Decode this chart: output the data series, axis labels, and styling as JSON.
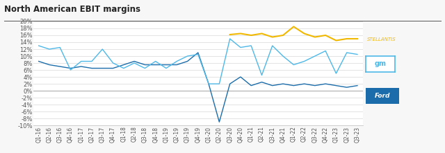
{
  "title": "North American EBIT margins",
  "x_labels": [
    "Q1-16",
    "Q2-16",
    "Q3-16",
    "Q4-16",
    "Q1-17",
    "Q2-17",
    "Q3-17",
    "Q4-17",
    "Q1-18",
    "Q2-18",
    "Q3-18",
    "Q4-18",
    "Q1-19",
    "Q2-19",
    "Q3-19",
    "Q4-19",
    "Q1-20",
    "Q2-20",
    "Q3-20",
    "Q4-20",
    "Q1-21",
    "Q2-21",
    "Q3-21",
    "Q4-21",
    "Q1-22",
    "Q2-22",
    "Q3-22",
    "Q4-22",
    "Q1-23",
    "Q2-23",
    "Q3-23"
  ],
  "stellantis": [
    null,
    null,
    null,
    null,
    null,
    null,
    null,
    null,
    null,
    null,
    null,
    null,
    null,
    null,
    null,
    null,
    null,
    null,
    16.2,
    16.5,
    16.0,
    16.5,
    15.5,
    16.0,
    18.5,
    16.5,
    15.5,
    16.0,
    14.5,
    15.0,
    15.0
  ],
  "gm": [
    13.0,
    12.0,
    12.5,
    6.0,
    8.5,
    8.5,
    12.0,
    8.0,
    6.5,
    8.0,
    6.5,
    8.5,
    6.5,
    8.5,
    10.0,
    10.5,
    2.0,
    2.0,
    15.0,
    12.5,
    13.0,
    4.5,
    13.0,
    10.0,
    7.5,
    8.5,
    10.0,
    11.5,
    5.0,
    11.0,
    10.5
  ],
  "ford": [
    8.5,
    7.5,
    7.0,
    6.5,
    7.0,
    6.5,
    6.5,
    6.5,
    7.5,
    8.5,
    7.5,
    7.5,
    7.5,
    7.5,
    8.5,
    11.0,
    2.0,
    -9.0,
    2.0,
    4.0,
    1.5,
    2.5,
    1.5,
    2.0,
    1.5,
    2.0,
    1.5,
    2.0,
    1.5,
    1.0,
    1.5
  ],
  "stellantis_color": "#f0b800",
  "gm_color": "#4db8e8",
  "ford_color": "#1a6caa",
  "bg_color": "#f7f7f7",
  "plot_bg": "#ffffff",
  "grid_color": "#d8d8d8",
  "ylim": [
    -10,
    20
  ],
  "yticks": [
    -10,
    -8,
    -6,
    -4,
    -2,
    0,
    2,
    4,
    6,
    8,
    10,
    12,
    14,
    16,
    18,
    20
  ],
  "title_fontsize": 8.5,
  "axis_fontsize": 6
}
